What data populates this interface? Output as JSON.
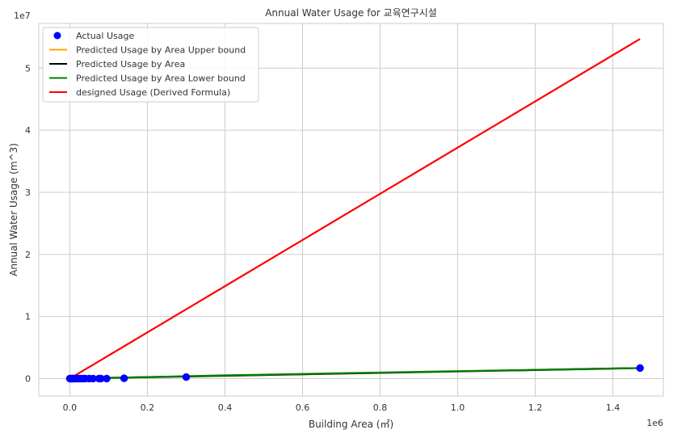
{
  "chart_data": {
    "type": "scatter",
    "title": "Annual Water Usage for 교육연구시설",
    "xlabel": "Building Area (㎡)",
    "ylabel": "Annual Water Usage (m^3)",
    "x_offset_label": "1e6",
    "y_offset_label": "1e7",
    "x_scale": 1000000,
    "y_scale": 10000000,
    "xlim": [
      -0.08,
      1.53
    ],
    "ylim": [
      -0.28,
      5.72
    ],
    "x_ticks": [
      0.0,
      0.2,
      0.4,
      0.6,
      0.8,
      1.0,
      1.2,
      1.4
    ],
    "x_tick_labels": [
      "0.0",
      "0.2",
      "0.4",
      "0.6",
      "0.8",
      "1.0",
      "1.2",
      "1.4"
    ],
    "y_ticks": [
      0,
      1,
      2,
      3,
      4,
      5
    ],
    "y_tick_labels": [
      "0",
      "1",
      "2",
      "3",
      "4",
      "5"
    ],
    "grid": true,
    "legend_position": "top-left",
    "series": [
      {
        "name": "Actual Usage",
        "kind": "scatter",
        "color": "#0000ff",
        "x": [
          0.0,
          0.002,
          0.004,
          0.006,
          0.008,
          0.01,
          0.013,
          0.016,
          0.02,
          0.025,
          0.03,
          0.035,
          0.04,
          0.05,
          0.06,
          0.075,
          0.08,
          0.095,
          0.14,
          0.3,
          1.47
        ],
        "y": [
          0.0,
          0.0,
          0.0,
          0.0,
          0.0,
          0.0,
          0.0,
          0.0,
          0.0,
          0.0,
          0.0,
          0.0,
          0.0,
          0.0,
          0.0,
          0.0,
          0.0,
          0.0,
          0.005,
          0.025,
          0.17
        ]
      },
      {
        "name": "Predicted Usage by Area Upper bound",
        "kind": "line",
        "color": "#ffa500",
        "x": [
          0.0,
          1.47
        ],
        "y": [
          0.0,
          0.17
        ]
      },
      {
        "name": "Predicted Usage by Area",
        "kind": "line",
        "color": "#000000",
        "x": [
          0.0,
          1.47
        ],
        "y": [
          0.0,
          0.17
        ]
      },
      {
        "name": "Predicted Usage by Area Lower bound",
        "kind": "line",
        "color": "#008000",
        "x": [
          0.0,
          0.16,
          0.27,
          0.38,
          0.49,
          0.6,
          0.71,
          0.82,
          0.93,
          1.04,
          1.15,
          1.26,
          1.36,
          1.47
        ],
        "y": [
          0.0,
          0.02,
          0.035,
          0.05,
          0.062,
          0.075,
          0.088,
          0.1,
          0.112,
          0.124,
          0.136,
          0.148,
          0.16,
          0.17
        ]
      },
      {
        "name": "designed Usage (Derived Formula)",
        "kind": "line",
        "color": "#ff0000",
        "x": [
          0.0,
          1.47
        ],
        "y": [
          0.0,
          5.47
        ]
      }
    ]
  }
}
